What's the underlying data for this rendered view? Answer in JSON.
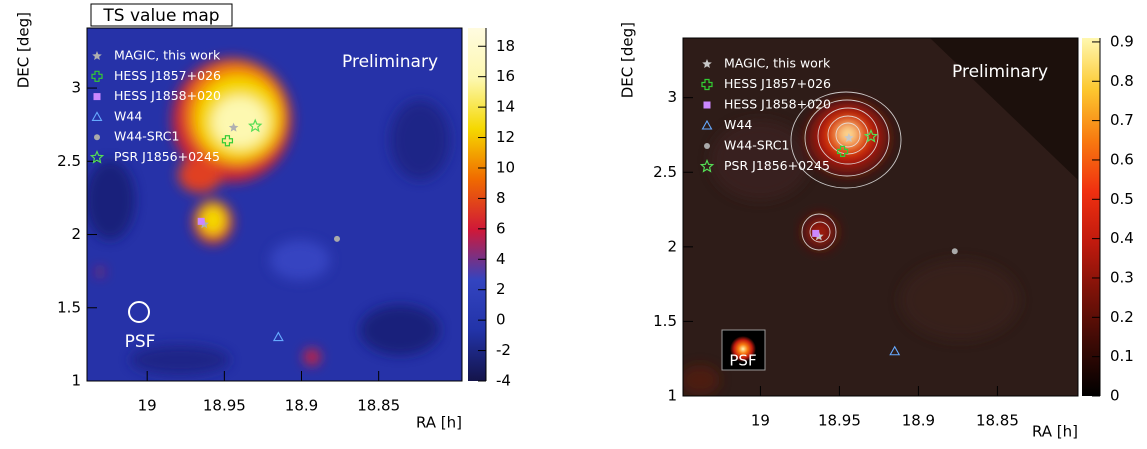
{
  "chart_data": [
    {
      "type": "heatmap",
      "title": "TS value map",
      "annotation": "Preliminary",
      "psf_label": "PSF",
      "x_label": "RA [h]",
      "y_label": "DEC [deg]",
      "xlim": [
        19.039,
        18.796
      ],
      "xticks": [
        19,
        18.95,
        18.9,
        18.85
      ],
      "ylim": [
        1,
        3.41
      ],
      "yticks": [
        1,
        1.5,
        2,
        2.5,
        3
      ],
      "colorbar": {
        "lim": [
          -4,
          19.2
        ],
        "ticks": [
          -4,
          -2,
          0,
          2,
          4,
          6,
          8,
          10,
          12,
          14,
          16,
          18
        ],
        "colors": [
          "#14144a",
          "#2233a8",
          "#3344c0",
          "#d01838",
          "#f06a00",
          "#f5d800",
          "#fdf8b0",
          "#fffbe0"
        ]
      },
      "series": [
        {
          "name": "MAGIC, this work",
          "color": "#b0b0b0",
          "marker": "star",
          "x": [
            18.963,
            18.944
          ],
          "values": [
            2.07,
            2.73
          ]
        },
        {
          "name": "HESS J1857+026",
          "color": "#33cc33",
          "marker": "cross",
          "x": [
            18.948
          ],
          "values": [
            2.64
          ]
        },
        {
          "name": "HESS J1858+020",
          "color": "#cc88ff",
          "marker": "square",
          "x": [
            18.965
          ],
          "values": [
            2.09
          ]
        },
        {
          "name": "W44",
          "color": "#66aaff",
          "marker": "triangle",
          "x": [
            18.915
          ],
          "values": [
            1.3
          ]
        },
        {
          "name": "W44-SRC1",
          "color": "#aaaaaa",
          "marker": "circle",
          "x": [
            18.877
          ],
          "values": [
            1.97
          ]
        },
        {
          "name": "PSR J1856+0245",
          "color": "#55dd55",
          "marker": "star-open",
          "x": [
            18.93
          ],
          "values": [
            2.74
          ]
        }
      ]
    },
    {
      "type": "heatmap",
      "annotation": "Preliminary",
      "psf_label": "PSF",
      "x_label": "RA [h]",
      "y_label": "DEC [deg]",
      "xlim": [
        19.049,
        18.799
      ],
      "xticks": [
        19,
        18.95,
        18.9,
        18.85
      ],
      "ylim": [
        1,
        3.4
      ],
      "yticks": [
        1,
        1.5,
        2,
        2.5,
        3
      ],
      "colorbar": {
        "lim": [
          0,
          0.91
        ],
        "ticks": [
          0,
          0.1,
          0.2,
          0.3,
          0.4,
          0.5,
          0.6,
          0.7,
          0.8,
          0.9
        ],
        "colors": [
          "#000000",
          "#3a0a05",
          "#7a1208",
          "#c01a0e",
          "#f03010",
          "#f87a10",
          "#fcc830",
          "#fff8b0"
        ]
      },
      "series": [
        {
          "name": "MAGIC, this work",
          "color": "#c8c8c8",
          "marker": "star",
          "x": [
            18.963,
            18.944
          ],
          "values": [
            2.07,
            2.73
          ]
        },
        {
          "name": "HESS J1857+026",
          "color": "#33cc33",
          "marker": "cross",
          "x": [
            18.948
          ],
          "values": [
            2.64
          ]
        },
        {
          "name": "HESS J1858+020",
          "color": "#cc88ff",
          "marker": "square",
          "x": [
            18.965
          ],
          "values": [
            2.09
          ]
        },
        {
          "name": "W44",
          "color": "#66aaff",
          "marker": "triangle",
          "x": [
            18.915
          ],
          "values": [
            1.3
          ]
        },
        {
          "name": "W44-SRC1",
          "color": "#aaaaaa",
          "marker": "circle",
          "x": [
            18.877
          ],
          "values": [
            1.97
          ]
        },
        {
          "name": "PSR J1856+0245",
          "color": "#55dd55",
          "marker": "star-open",
          "x": [
            18.93
          ],
          "values": [
            2.74
          ]
        }
      ]
    }
  ]
}
